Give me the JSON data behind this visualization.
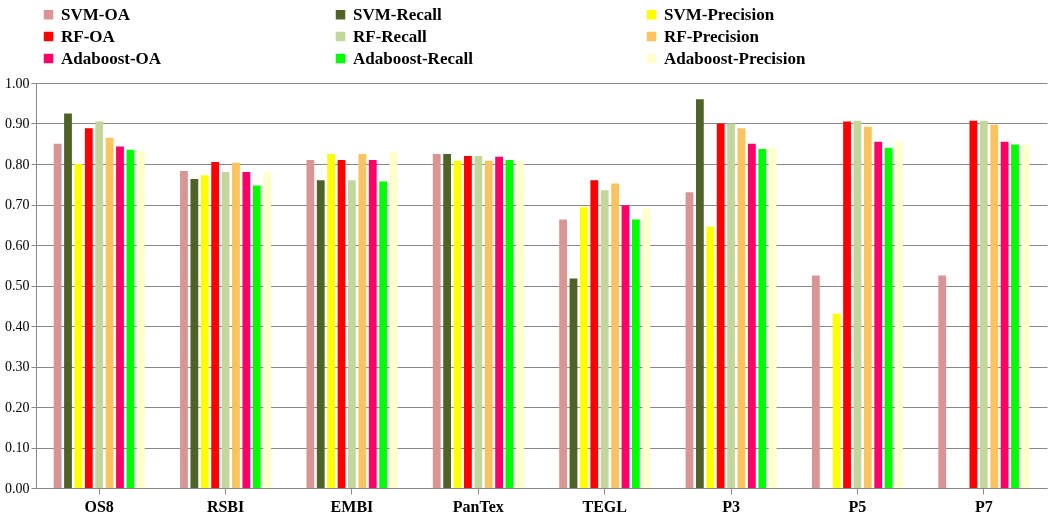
{
  "chart_data": {
    "type": "bar",
    "categories": [
      "OS8",
      "RSBI",
      "EMBI",
      "PanTex",
      "TEGL",
      "P3",
      "P5",
      "P7"
    ],
    "series": [
      {
        "name": "SVM-OA",
        "color": "#d99594",
        "values": [
          0.85,
          0.783,
          0.81,
          0.825,
          0.663,
          0.73,
          0.525,
          0.525
        ]
      },
      {
        "name": "SVM-Recall",
        "color": "#4f6228",
        "values": [
          0.925,
          0.763,
          0.76,
          0.825,
          0.517,
          0.96,
          null,
          null
        ]
      },
      {
        "name": "SVM-Precision",
        "color": "#ffff00",
        "values": [
          0.8,
          0.772,
          0.825,
          0.808,
          0.693,
          0.645,
          0.43,
          null
        ]
      },
      {
        "name": "RF-OA",
        "color": "#ff0000",
        "values": [
          0.888,
          0.805,
          0.81,
          0.82,
          0.76,
          0.9,
          0.905,
          0.907
        ]
      },
      {
        "name": "RF-Recall",
        "color": "#c3d69b",
        "values": [
          0.905,
          0.78,
          0.76,
          0.82,
          0.735,
          0.9,
          0.907,
          0.907
        ]
      },
      {
        "name": "RF-Precision",
        "color": "#fac35f",
        "values": [
          0.865,
          0.803,
          0.825,
          0.808,
          0.752,
          0.888,
          0.892,
          0.897
        ]
      },
      {
        "name": "Adaboost-OA",
        "color": "#ff0066",
        "values": [
          0.843,
          0.78,
          0.81,
          0.818,
          0.698,
          0.85,
          0.855,
          0.855
        ]
      },
      {
        "name": "Adaboost-Recall",
        "color": "#00ff00",
        "values": [
          0.835,
          0.747,
          0.757,
          0.81,
          0.663,
          0.837,
          0.84,
          0.848
        ]
      },
      {
        "name": "Adaboost-Precision",
        "color": "#ffffcc",
        "values": [
          0.833,
          0.78,
          0.83,
          0.808,
          0.69,
          0.84,
          0.855,
          0.848
        ]
      }
    ],
    "ylim": [
      0,
      1
    ],
    "yticks": [
      {
        "value": 0,
        "label": "0.00"
      },
      {
        "value": 0.1,
        "label": "0.10"
      },
      {
        "value": 0.2,
        "label": "0.20"
      },
      {
        "value": 0.3,
        "label": "0.30"
      },
      {
        "value": 0.4,
        "label": "0.40"
      },
      {
        "value": 0.5,
        "label": "0.50"
      },
      {
        "value": 0.6,
        "label": "0.60"
      },
      {
        "value": 0.7,
        "label": "0.70"
      },
      {
        "value": 0.8,
        "label": "0.80"
      },
      {
        "value": 0.9,
        "label": "0.90"
      },
      {
        "value": 1,
        "label": "1.00"
      }
    ],
    "grid": "y",
    "legend": "top"
  }
}
